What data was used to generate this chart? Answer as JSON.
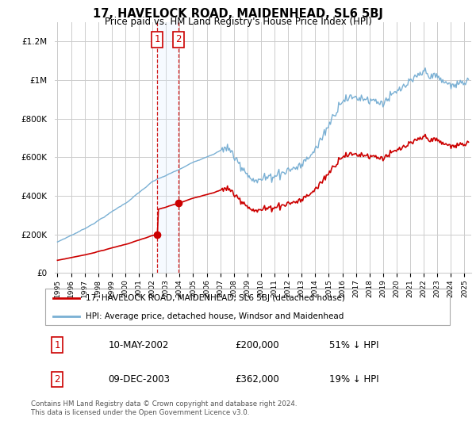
{
  "title": "17, HAVELOCK ROAD, MAIDENHEAD, SL6 5BJ",
  "subtitle": "Price paid vs. HM Land Registry's House Price Index (HPI)",
  "legend_line1": "17, HAVELOCK ROAD, MAIDENHEAD, SL6 5BJ (detached house)",
  "legend_line2": "HPI: Average price, detached house, Windsor and Maidenhead",
  "transaction1_date": "10-MAY-2002",
  "transaction1_price": "£200,000",
  "transaction1_hpi": "51% ↓ HPI",
  "transaction2_date": "09-DEC-2003",
  "transaction2_price": "£362,000",
  "transaction2_hpi": "19% ↓ HPI",
  "footnote": "Contains HM Land Registry data © Crown copyright and database right 2024.\nThis data is licensed under the Open Government Licence v3.0.",
  "hpi_color": "#7ab0d4",
  "price_color": "#cc0000",
  "transaction_box_color": "#cc0000",
  "shading_color": "#ddeeff",
  "grid_color": "#cccccc",
  "ylim": [
    0,
    1300000
  ],
  "yticks": [
    0,
    200000,
    400000,
    600000,
    800000,
    1000000,
    1200000
  ],
  "transaction1_x": 2002.36,
  "transaction1_y": 200000,
  "transaction2_x": 2003.92,
  "transaction2_y": 362000,
  "xmin": 1994.8,
  "xmax": 2025.5
}
